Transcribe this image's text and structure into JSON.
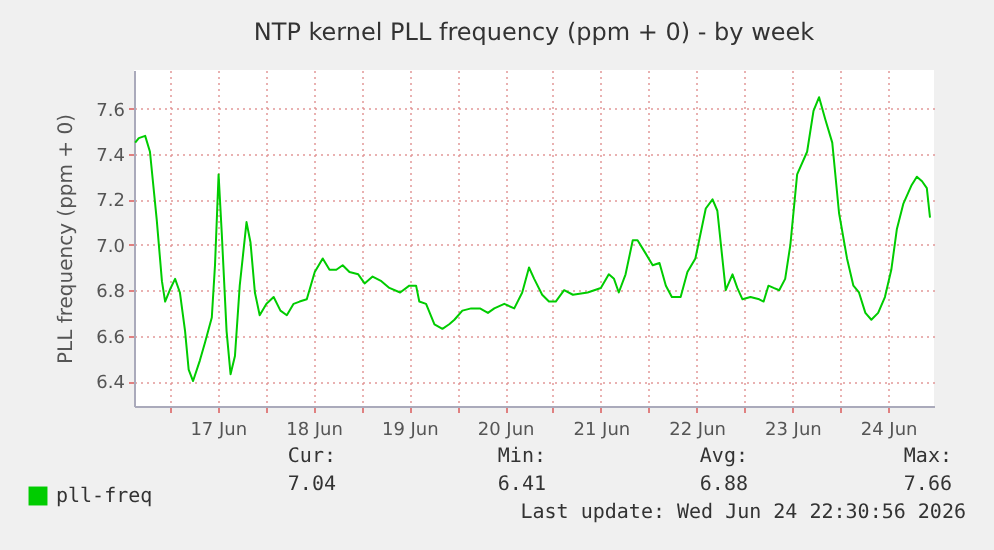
{
  "chart_data": {
    "type": "line",
    "title": "NTP kernel PLL frequency (ppm + 0) - by week",
    "ylabel": "PLL frequency (ppm + 0)",
    "x": [
      "2026-06-16T15:18",
      "2026-06-16T16:12",
      "2026-06-16T17:48",
      "2026-06-16T19:00",
      "2026-06-16T20:42",
      "2026-06-16T22:00",
      "2026-06-16T22:48",
      "2026-06-17T00:12",
      "2026-06-17T01:18",
      "2026-06-17T02:30",
      "2026-06-17T03:48",
      "2026-06-17T04:42",
      "2026-06-17T05:48",
      "2026-06-17T07:30",
      "2026-06-17T08:48",
      "2026-06-17T10:30",
      "2026-06-17T11:18",
      "2026-06-17T12:12",
      "2026-06-17T13:00",
      "2026-06-17T14:12",
      "2026-06-17T15:12",
      "2026-06-17T16:18",
      "2026-06-17T17:30",
      "2026-06-17T19:12",
      "2026-06-17T20:12",
      "2026-06-17T21:18",
      "2026-06-17T22:30",
      "2026-06-18T00:12",
      "2026-06-18T02:00",
      "2026-06-18T03:42",
      "2026-06-18T05:18",
      "2026-06-18T07:00",
      "2026-06-18T08:30",
      "2026-06-18T10:18",
      "2026-06-18T12:18",
      "2026-06-18T14:18",
      "2026-06-18T16:00",
      "2026-06-18T17:42",
      "2026-06-18T19:18",
      "2026-06-18T21:00",
      "2026-06-18T23:12",
      "2026-06-19T00:48",
      "2026-06-19T02:48",
      "2026-06-19T05:00",
      "2026-06-19T07:00",
      "2026-06-19T09:42",
      "2026-06-19T12:00",
      "2026-06-19T13:42",
      "2026-06-19T14:30",
      "2026-06-19T16:12",
      "2026-06-19T18:18",
      "2026-06-19T20:18",
      "2026-06-19T22:00",
      "2026-06-19T23:18",
      "2026-06-20T01:18",
      "2026-06-20T03:30",
      "2026-06-20T05:42",
      "2026-06-20T07:42",
      "2026-06-20T09:18",
      "2026-06-20T11:48",
      "2026-06-20T14:18",
      "2026-06-20T16:18",
      "2026-06-20T18:00",
      "2026-06-20T19:18",
      "2026-06-20T21:18",
      "2026-06-20T23:00",
      "2026-06-21T00:42",
      "2026-06-21T02:48",
      "2026-06-21T05:00",
      "2026-06-21T08:42",
      "2026-06-21T12:00",
      "2026-06-21T14:00",
      "2026-06-21T15:18",
      "2026-06-21T16:30",
      "2026-06-21T18:12",
      "2026-06-21T20:00",
      "2026-06-21T21:12",
      "2026-06-21T23:18",
      "2026-06-22T01:00",
      "2026-06-22T02:42",
      "2026-06-22T04:18",
      "2026-06-22T05:48",
      "2026-06-22T08:00",
      "2026-06-22T09:42",
      "2026-06-22T11:42",
      "2026-06-22T14:18",
      "2026-06-22T16:00",
      "2026-06-22T17:12",
      "2026-06-22T19:18",
      "2026-06-22T21:00",
      "2026-06-22T22:12",
      "2026-06-22T23:30",
      "2026-06-23T01:30",
      "2026-06-23T03:42",
      "2026-06-23T04:48",
      "2026-06-23T06:00",
      "2026-06-23T07:18",
      "2026-06-23T08:42",
      "2026-06-23T10:12",
      "2026-06-23T11:30",
      "2026-06-23T13:12",
      "2026-06-23T15:42",
      "2026-06-23T17:18",
      "2026-06-23T18:42",
      "2026-06-23T20:18",
      "2026-06-23T22:00",
      "2026-06-23T23:42",
      "2026-06-24T01:42",
      "2026-06-24T03:18",
      "2026-06-24T04:42",
      "2026-06-24T06:18",
      "2026-06-24T07:48",
      "2026-06-24T09:30",
      "2026-06-24T11:12",
      "2026-06-24T12:48",
      "2026-06-24T14:12",
      "2026-06-24T15:48",
      "2026-06-24T17:48",
      "2026-06-24T19:12",
      "2026-06-24T20:30",
      "2026-06-24T21:42",
      "2026-06-24T22:30"
    ],
    "series": [
      {
        "name": "pll-freq",
        "color": "#00cc00",
        "values": [
          7.45,
          7.47,
          7.48,
          7.41,
          7.11,
          6.84,
          6.75,
          6.81,
          6.85,
          6.79,
          6.62,
          6.45,
          6.4,
          6.49,
          6.57,
          6.68,
          6.91,
          7.31,
          7.05,
          6.62,
          6.43,
          6.51,
          6.82,
          7.1,
          7.01,
          6.79,
          6.69,
          6.74,
          6.77,
          6.71,
          6.69,
          6.74,
          6.75,
          6.76,
          6.88,
          6.94,
          6.89,
          6.89,
          6.91,
          6.88,
          6.87,
          6.83,
          6.86,
          6.84,
          6.81,
          6.79,
          6.82,
          6.82,
          6.75,
          6.74,
          6.65,
          6.63,
          6.65,
          6.67,
          6.71,
          6.72,
          6.72,
          6.7,
          6.72,
          6.74,
          6.72,
          6.79,
          6.9,
          6.85,
          6.78,
          6.75,
          6.75,
          6.8,
          6.78,
          6.79,
          6.81,
          6.87,
          6.85,
          6.79,
          6.87,
          7.02,
          7.02,
          6.96,
          6.91,
          6.92,
          6.82,
          6.77,
          6.77,
          6.88,
          6.94,
          7.16,
          7.2,
          7.15,
          6.8,
          6.87,
          6.81,
          6.76,
          6.77,
          6.76,
          6.75,
          6.82,
          6.81,
          6.8,
          6.85,
          7.0,
          7.31,
          7.41,
          7.59,
          7.65,
          7.55,
          7.45,
          7.14,
          6.94,
          6.82,
          6.79,
          6.7,
          6.67,
          6.7,
          6.77,
          6.89,
          7.07,
          7.18,
          7.26,
          7.3,
          7.28,
          7.25,
          7.12
        ]
      }
    ],
    "xlim": [
      "2026-06-16T15:00",
      "2026-06-24T23:30"
    ],
    "xticks": [
      {
        "value": "2026-06-17T00:00",
        "label": null
      },
      {
        "value": "2026-06-17T12:00",
        "label": "17 Jun"
      },
      {
        "value": "2026-06-18T00:00",
        "label": null
      },
      {
        "value": "2026-06-18T12:00",
        "label": "18 Jun"
      },
      {
        "value": "2026-06-19T00:00",
        "label": null
      },
      {
        "value": "2026-06-19T12:00",
        "label": "19 Jun"
      },
      {
        "value": "2026-06-20T00:00",
        "label": null
      },
      {
        "value": "2026-06-20T12:00",
        "label": "20 Jun"
      },
      {
        "value": "2026-06-21T00:00",
        "label": null
      },
      {
        "value": "2026-06-21T12:00",
        "label": "21 Jun"
      },
      {
        "value": "2026-06-22T00:00",
        "label": null
      },
      {
        "value": "2026-06-22T12:00",
        "label": "22 Jun"
      },
      {
        "value": "2026-06-23T00:00",
        "label": null
      },
      {
        "value": "2026-06-23T12:00",
        "label": "23 Jun"
      },
      {
        "value": "2026-06-24T00:00",
        "label": null
      },
      {
        "value": "2026-06-24T12:00",
        "label": "24 Jun"
      }
    ],
    "ylim": [
      6.29,
      7.77
    ],
    "yticks": [
      {
        "value": 6.4,
        "label": "6.4"
      },
      {
        "value": 6.6,
        "label": "6.6"
      },
      {
        "value": 6.8,
        "label": "6.8"
      },
      {
        "value": 7,
        "label": "7.0"
      },
      {
        "value": 7.2,
        "label": "7.2"
      },
      {
        "value": 7.4,
        "label": "7.4"
      },
      {
        "value": 7.6,
        "label": "7.6"
      }
    ],
    "grid": true,
    "legend": "bottom left",
    "line_style": "solid",
    "annotations": [
      "Cur:",
      "Min:",
      "Avg:",
      "Max:",
      "7.04",
      "6.41",
      "6.88",
      "7.66",
      "Last update: Wed Jun 24 22:30:56 2026"
    ]
  }
}
